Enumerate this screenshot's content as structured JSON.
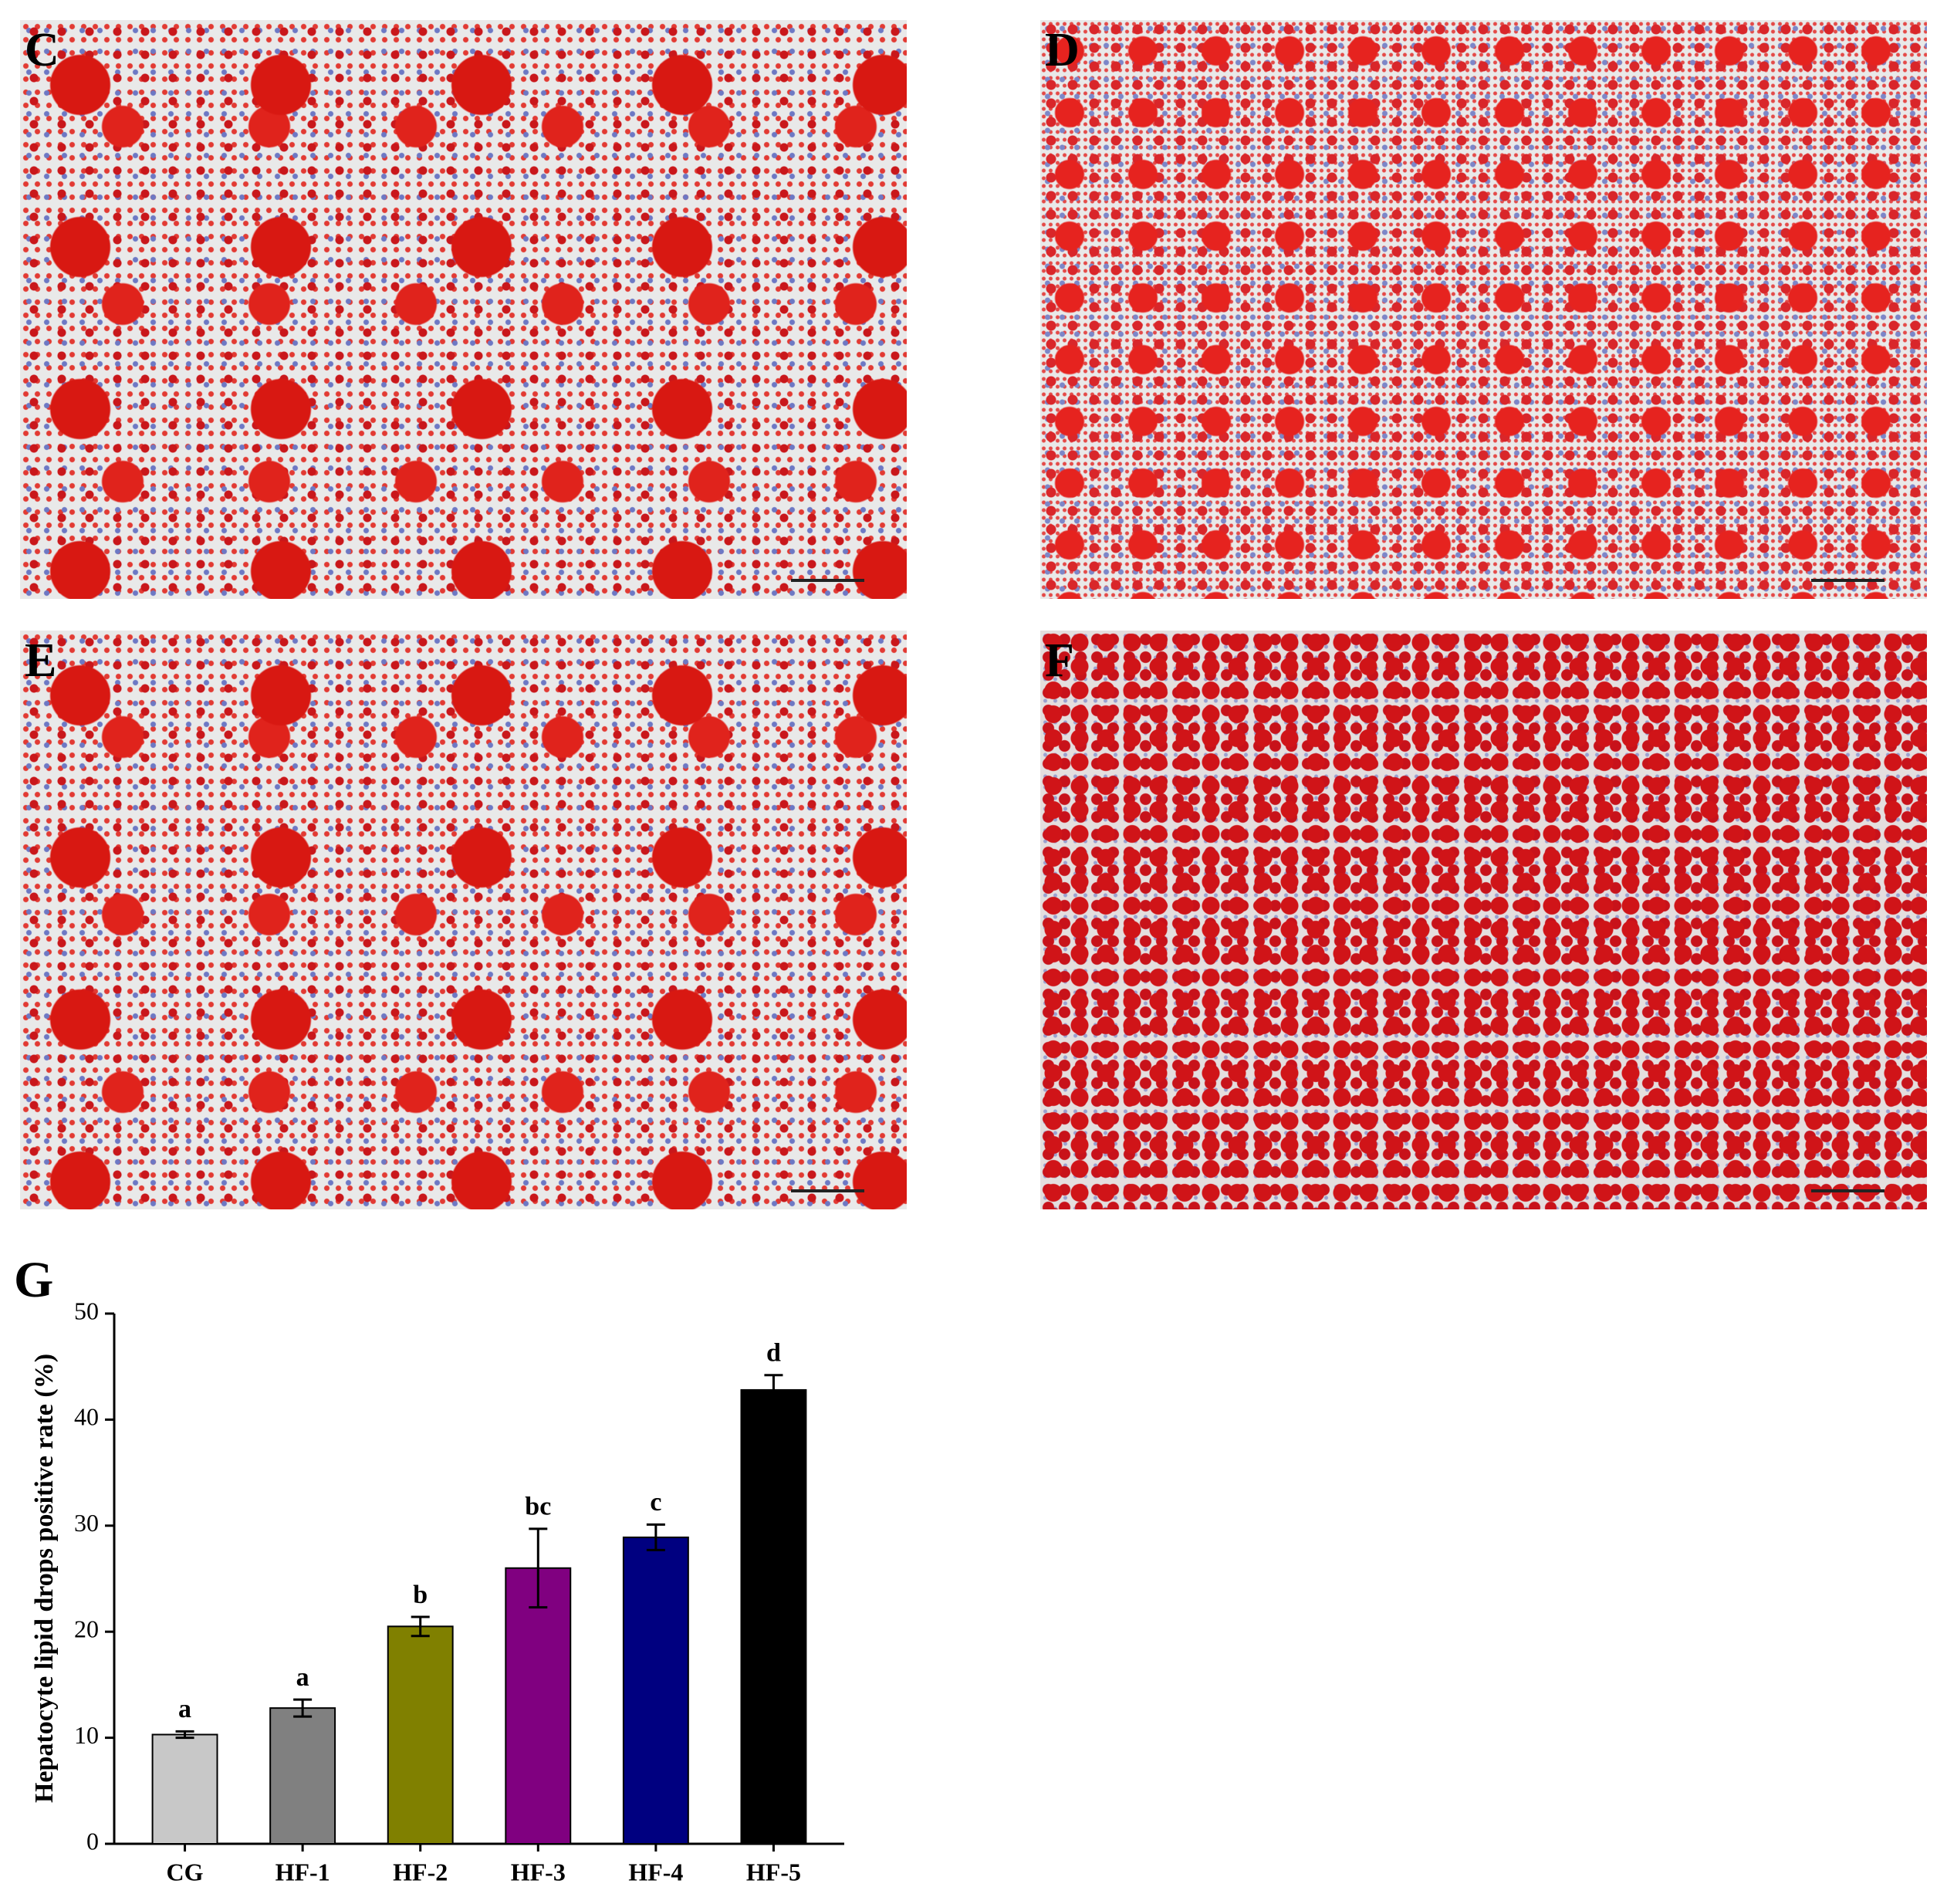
{
  "panels": [
    {
      "label": "C"
    },
    {
      "label": "D"
    },
    {
      "label": "E"
    },
    {
      "label": "F"
    }
  ],
  "chart_data": {
    "type": "bar",
    "panel_label": "G",
    "y_label": "Hepatocyte lipid drops positive rate (%)",
    "categories": [
      "CG",
      "HF-1",
      "HF-2",
      "HF-3",
      "HF-4",
      "HF-5"
    ],
    "values": [
      10.3,
      12.8,
      20.5,
      26.0,
      28.9,
      42.8
    ],
    "errors": [
      0.3,
      0.8,
      0.9,
      3.7,
      1.2,
      1.4
    ],
    "annotations": [
      "a",
      "a",
      "b",
      "bc",
      "c",
      "d"
    ],
    "colors": [
      "#c8c8c8",
      "#808080",
      "#808000",
      "#800080",
      "#000080",
      "#000000"
    ],
    "ylim": [
      0,
      50
    ],
    "yticks": [
      0,
      10,
      20,
      30,
      40,
      50
    ],
    "grid": false
  }
}
